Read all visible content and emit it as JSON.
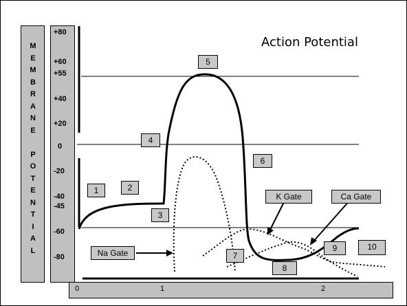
{
  "title": "Action Potential",
  "y_axis_letters": [
    "M",
    "E",
    "M",
    "B",
    "R",
    "A",
    "N",
    "E",
    "",
    "P",
    "O",
    "T",
    "E",
    "N",
    "T",
    "I",
    "A",
    "L"
  ],
  "y_scale": [
    "+80",
    "+60",
    "+55",
    "+40",
    "+20",
    "0",
    "-20",
    "-40",
    "-45",
    "-60",
    "-80"
  ],
  "x_ticks": [
    "0",
    "1",
    "2"
  ],
  "number_boxes": [
    "1",
    "2",
    "3",
    "4",
    "5",
    "6",
    "7",
    "8",
    "9",
    "10"
  ],
  "gate_labels": {
    "na": "Na Gate",
    "k": "K Gate",
    "ca": "Ca Gate"
  },
  "colors": {
    "box_fill": "#c8c8c8",
    "axis_fill": "#c0c0c0",
    "line": "#000000"
  }
}
